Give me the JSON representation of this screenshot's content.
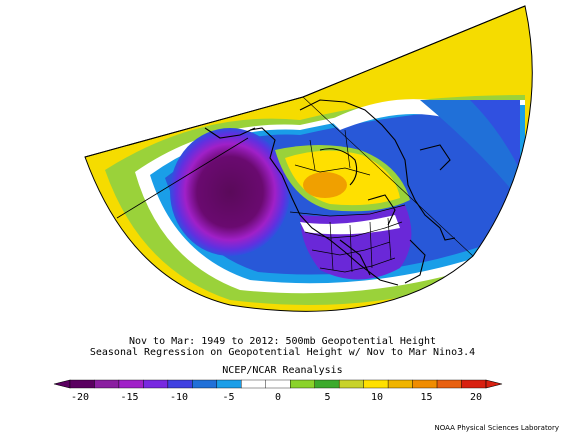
{
  "caption": {
    "line1": "Nov to Mar: 1949 to 2012: 500mb Geopotential Height",
    "line2": "Seasonal Regression on Geopotential Height  w/ Nov to Mar Nino3.4",
    "line3": "NCEP/NCAR Reanalysis"
  },
  "colorbar": {
    "ticks": [
      "-20",
      "-15",
      "-10",
      "-5",
      "0",
      "5",
      "10",
      "15",
      "20"
    ],
    "colors": [
      "#5a0060",
      "#8a1fa0",
      "#a020c8",
      "#7828e0",
      "#4040e0",
      "#2070d8",
      "#1a9ee8",
      "#ffffff",
      "#ffffff",
      "#8ad22a",
      "#3caa2c",
      "#c8d22a",
      "#ffe000",
      "#f0b400",
      "#f08c00",
      "#e86010",
      "#d82010"
    ]
  },
  "credit": "NOAA Physical Sciences Laboratory"
}
